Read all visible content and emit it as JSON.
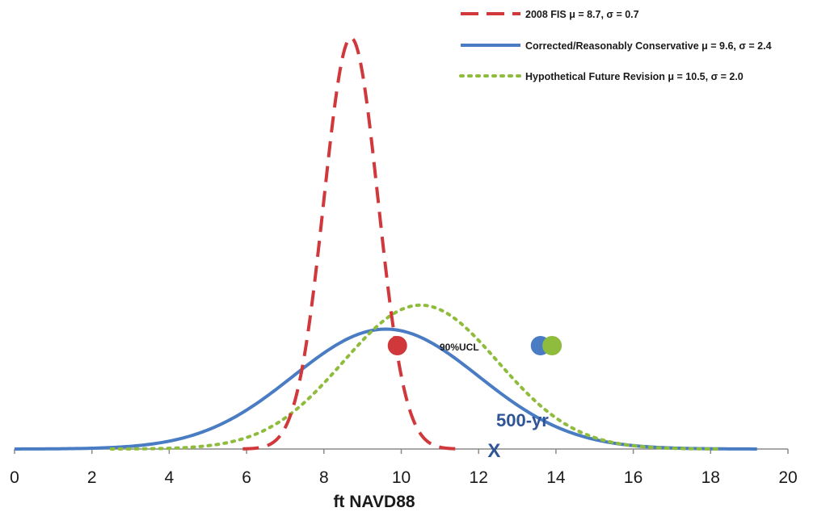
{
  "chart_data": {
    "type": "line",
    "title": "",
    "xlabel": "ft NAVD88",
    "ylabel": "",
    "xlim": [
      0,
      20
    ],
    "xticks": [
      0,
      2,
      4,
      6,
      8,
      10,
      12,
      14,
      16,
      18,
      20
    ],
    "grid": false,
    "legend_position": "top-right",
    "series": [
      {
        "name": "2008 FIS μ = 8.7, σ = 0.7",
        "mu": 8.7,
        "sigma": 0.7,
        "x_range": [
          5.9,
          11.4
        ],
        "style": "dashed",
        "color": "#d0383b",
        "ucl_90": 9.9
      },
      {
        "name": "Corrected/Reasonably Conservative μ = 9.6, σ = 2.4",
        "mu": 9.6,
        "sigma": 2.4,
        "x_range": [
          0,
          19.2
        ],
        "style": "solid",
        "color": "#4a7cc4",
        "ucl_90": 13.6
      },
      {
        "name": "Hypothetical Future Revision μ = 10.5, σ = 2.0",
        "mu": 10.5,
        "sigma": 2.0,
        "x_range": [
          2.5,
          18.3
        ],
        "style": "dotted",
        "color": "#8fbc3c",
        "ucl_90": 13.9
      }
    ],
    "annotations": {
      "ucl_label": "90%UCL",
      "return_period_label": "500-yr",
      "marker_label": "X",
      "marker_x": 12.4,
      "label_color": "#2f5597"
    }
  }
}
